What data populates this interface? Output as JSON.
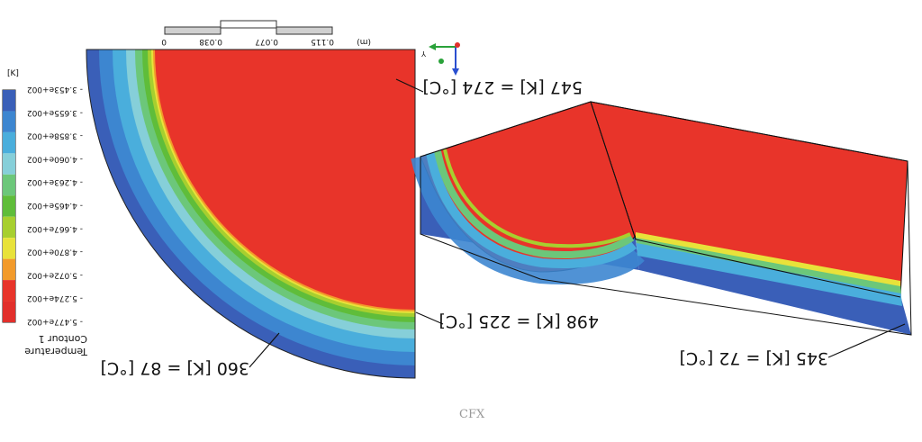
{
  "legend": {
    "unit": "[K]",
    "values": [
      "3.453e+002",
      "3.655e+002",
      "3.858e+002",
      "4.060e+002",
      "4.263e+002",
      "4.465e+002",
      "4.667e+002",
      "4.870e+002",
      "5.072e+002",
      "5.274e+002",
      "5.477e+002"
    ],
    "colors": [
      "#3a5fb8",
      "#3d86d0",
      "#4aaedc",
      "#86cfd9",
      "#6cc77a",
      "#5fbd3a",
      "#a7cf2f",
      "#e8e23a",
      "#f29a2a",
      "#e8342a",
      "#e22f2b"
    ],
    "title_line1": "Temperature",
    "title_line2": "Contour 1"
  },
  "scale_bar": {
    "ticks": [
      "0",
      "0.038",
      "0.077",
      "0.115"
    ],
    "unit": "(m)"
  },
  "annotations": {
    "top": "547 [K] = 274 [°C]",
    "mid": "498 [K] = 225 [°C]",
    "left": "360 [K] = 87 [°C]",
    "right": "345 [K] = 72 [°C]"
  },
  "axes": {
    "y_label": "Y"
  },
  "watermark": "CFX"
}
